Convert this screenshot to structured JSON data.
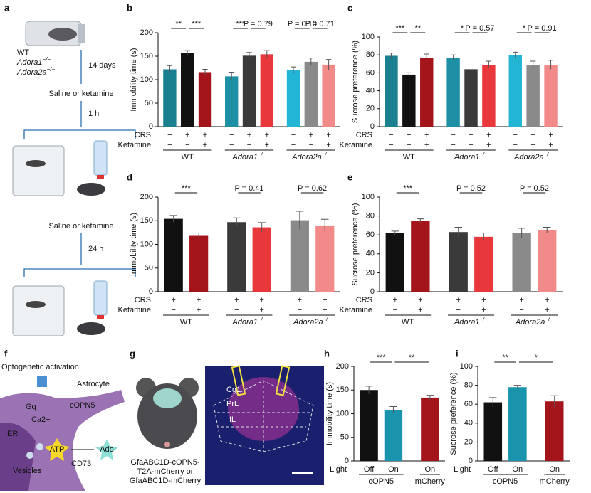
{
  "panel_a": {
    "letter": "a",
    "genotypes": [
      {
        "name": "WT"
      },
      {
        "name": "Adora1",
        "superscript": "−/−"
      },
      {
        "name": "Adora2a",
        "superscript": "−/−"
      }
    ],
    "steps": [
      "14 days",
      "Saline or ketamine",
      "1 h",
      "Saline or ketamine",
      "24 h"
    ]
  },
  "panel_f": {
    "letter": "f",
    "labels": [
      "Optogenetic activation",
      "Astrocyte",
      "cOPN5",
      "Gq",
      "Ca2+",
      "ER",
      "Vesicles",
      "ATP",
      "Ado",
      "CD73"
    ]
  },
  "panel_g": {
    "letter": "g",
    "construct": [
      "GfaABC1D-cOPN5-",
      "T2A-mCherry or",
      "GfaABC1D-mCherry"
    ],
    "regions": [
      "Cg1",
      "PrL",
      "IL"
    ]
  },
  "chart_data": [
    {
      "panel": "b",
      "type": "bar",
      "ylabel": "Immobility time (s)",
      "ylim": [
        0,
        200
      ],
      "yticks": [
        0,
        50,
        100,
        150,
        200
      ],
      "row_labels": [
        "CRS",
        "Ketamine"
      ],
      "groups": [
        {
          "name": "WT",
          "bars": [
            {
              "signs": [
                "−",
                "−"
              ],
              "color": "#1a7f8e",
              "value": 122,
              "error": 8,
              "compare_next": "**"
            },
            {
              "signs": [
                "+",
                "−"
              ],
              "color": "#111111",
              "value": 157,
              "error": 5,
              "compare_next": "***"
            },
            {
              "signs": [
                "+",
                "+"
              ],
              "color": "#a3141b",
              "value": 116,
              "error": 6
            }
          ]
        },
        {
          "name": "Adora1",
          "superscript": "−/−",
          "bars": [
            {
              "signs": [
                "−",
                "−"
              ],
              "color": "#1e90a6",
              "value": 107,
              "error": 9,
              "compare_next": "***"
            },
            {
              "signs": [
                "+",
                "−"
              ],
              "color": "#3a3a3a",
              "value": 151,
              "error": 7,
              "compare_next": "P = 0.79"
            },
            {
              "signs": [
                "+",
                "+"
              ],
              "color": "#e8383b",
              "value": 154,
              "error": 8
            }
          ]
        },
        {
          "name": "Adora2a",
          "superscript": "−/−",
          "bars": [
            {
              "signs": [
                "−",
                "−"
              ],
              "color": "#22b6d4",
              "value": 120,
              "error": 7,
              "compare_next": "P = 0.10"
            },
            {
              "signs": [
                "+",
                "−"
              ],
              "color": "#8a8a8a",
              "value": 138,
              "error": 8,
              "compare_next": "P = 0.71"
            },
            {
              "signs": [
                "+",
                "+"
              ],
              "color": "#f38a8a",
              "value": 132,
              "error": 11
            }
          ]
        }
      ]
    },
    {
      "panel": "c",
      "type": "bar",
      "ylabel": "Sucrose preference (%)",
      "ylim": [
        0,
        100
      ],
      "yticks": [
        0,
        20,
        40,
        60,
        80,
        100
      ],
      "row_labels": [
        "CRS",
        "Ketamine"
      ],
      "groups": [
        {
          "name": "WT",
          "bars": [
            {
              "signs": [
                "−",
                "−"
              ],
              "color": "#1a7f8e",
              "value": 79,
              "error": 3,
              "compare_next": "***"
            },
            {
              "signs": [
                "+",
                "−"
              ],
              "color": "#111111",
              "value": 58,
              "error": 2,
              "compare_next": "**"
            },
            {
              "signs": [
                "+",
                "+"
              ],
              "color": "#a3141b",
              "value": 77,
              "error": 4
            }
          ]
        },
        {
          "name": "Adora1",
          "superscript": "−/−",
          "bars": [
            {
              "signs": [
                "−",
                "−"
              ],
              "color": "#1e90a6",
              "value": 77,
              "error": 3,
              "compare_next": "*"
            },
            {
              "signs": [
                "+",
                "−"
              ],
              "color": "#3a3a3a",
              "value": 64,
              "error": 7,
              "compare_next": "P = 0.57"
            },
            {
              "signs": [
                "+",
                "+"
              ],
              "color": "#e8383b",
              "value": 69,
              "error": 4
            }
          ]
        },
        {
          "name": "Adora2a",
          "superscript": "−/−",
          "bars": [
            {
              "signs": [
                "−",
                "−"
              ],
              "color": "#22b6d4",
              "value": 80,
              "error": 3,
              "compare_next": "*"
            },
            {
              "signs": [
                "+",
                "−"
              ],
              "color": "#8a8a8a",
              "value": 69,
              "error": 4,
              "compare_next": "P = 0.91"
            },
            {
              "signs": [
                "+",
                "+"
              ],
              "color": "#f38a8a",
              "value": 69,
              "error": 5
            }
          ]
        }
      ]
    },
    {
      "panel": "d",
      "type": "bar",
      "ylabel": "Immobility time (s)",
      "ylim": [
        0,
        200
      ],
      "yticks": [
        0,
        50,
        100,
        150,
        200
      ],
      "row_labels": [
        "CRS",
        "Ketamine"
      ],
      "groups": [
        {
          "name": "WT",
          "bars": [
            {
              "signs": [
                "+",
                "−"
              ],
              "color": "#111111",
              "value": 154,
              "error": 7,
              "compare_next": "***"
            },
            {
              "signs": [
                "+",
                "+"
              ],
              "color": "#a3141b",
              "value": 118,
              "error": 6
            }
          ]
        },
        {
          "name": "Adora1",
          "superscript": "−/−",
          "bars": [
            {
              "signs": [
                "+",
                "−"
              ],
              "color": "#3a3a3a",
              "value": 147,
              "error": 9,
              "compare_next": "P = 0.41"
            },
            {
              "signs": [
                "+",
                "+"
              ],
              "color": "#e8383b",
              "value": 136,
              "error": 10
            }
          ]
        },
        {
          "name": "Adora2a",
          "superscript": "−/−",
          "bars": [
            {
              "signs": [
                "+",
                "−"
              ],
              "color": "#8a8a8a",
              "value": 151,
              "error": 19,
              "compare_next": "P = 0.62"
            },
            {
              "signs": [
                "+",
                "+"
              ],
              "color": "#f38a8a",
              "value": 140,
              "error": 13
            }
          ]
        }
      ]
    },
    {
      "panel": "e",
      "type": "bar",
      "ylabel": "Sucrose preference (%)",
      "ylim": [
        0,
        100
      ],
      "yticks": [
        0,
        20,
        40,
        60,
        80,
        100
      ],
      "row_labels": [
        "CRS",
        "Ketamine"
      ],
      "groups": [
        {
          "name": "WT",
          "bars": [
            {
              "signs": [
                "+",
                "−"
              ],
              "color": "#111111",
              "value": 62,
              "error": 2,
              "compare_next": "***"
            },
            {
              "signs": [
                "+",
                "+"
              ],
              "color": "#a3141b",
              "value": 75,
              "error": 2
            }
          ]
        },
        {
          "name": "Adora1",
          "superscript": "−/−",
          "bars": [
            {
              "signs": [
                "+",
                "−"
              ],
              "color": "#3a3a3a",
              "value": 63,
              "error": 5,
              "compare_next": "P = 0.52"
            },
            {
              "signs": [
                "+",
                "+"
              ],
              "color": "#e8383b",
              "value": 58,
              "error": 4
            }
          ]
        },
        {
          "name": "Adora2a",
          "superscript": "−/−",
          "bars": [
            {
              "signs": [
                "+",
                "−"
              ],
              "color": "#8a8a8a",
              "value": 62,
              "error": 5,
              "compare_next": "P = 0.52"
            },
            {
              "signs": [
                "+",
                "+"
              ],
              "color": "#f38a8a",
              "value": 65,
              "error": 3
            }
          ]
        }
      ]
    },
    {
      "panel": "h",
      "type": "bar",
      "ylabel": "Immobility time (s)",
      "ylim": [
        0,
        200
      ],
      "yticks": [
        0,
        50,
        100,
        150,
        200
      ],
      "row_labels": [
        "Light"
      ],
      "groups": [
        {
          "name": "cOPN5",
          "bars": [
            {
              "signs": [
                "Off"
              ],
              "color": "#111111",
              "value": 150,
              "error": 8,
              "compare_next": "***"
            },
            {
              "signs": [
                "On"
              ],
              "color": "#1a93ac",
              "value": 108,
              "error": 7,
              "compare_next": "**"
            }
          ]
        },
        {
          "name": "mCherry",
          "bars": [
            {
              "signs": [
                "On"
              ],
              "color": "#a3141b",
              "value": 134,
              "error": 5
            }
          ]
        }
      ]
    },
    {
      "panel": "i",
      "type": "bar",
      "ylabel": "Sucrose preference (%)",
      "ylim": [
        0,
        100
      ],
      "yticks": [
        0,
        20,
        40,
        60,
        80,
        100
      ],
      "row_labels": [
        "Light"
      ],
      "groups": [
        {
          "name": "cOPN5",
          "bars": [
            {
              "signs": [
                "Off"
              ],
              "color": "#111111",
              "value": 62,
              "error": 5,
              "compare_next": "**"
            },
            {
              "signs": [
                "On"
              ],
              "color": "#1a93ac",
              "value": 78,
              "error": 2,
              "compare_next": "*"
            }
          ]
        },
        {
          "name": "mCherry",
          "bars": [
            {
              "signs": [
                "On"
              ],
              "color": "#a3141b",
              "value": 63,
              "error": 6
            }
          ]
        }
      ]
    }
  ]
}
